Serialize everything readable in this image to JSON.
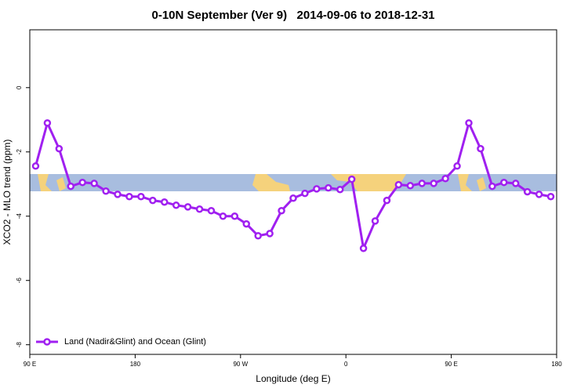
{
  "chart_data": {
    "type": "line",
    "title": "0-10N September (Ver 9)   2014-09-06 to 2018-12-31",
    "xlabel": "Longitude (deg E)",
    "ylabel": "XCO2 - MLO trend (ppm)",
    "x": [
      95,
      105,
      115,
      125,
      135,
      145,
      155,
      165,
      175,
      185,
      195,
      205,
      215,
      225,
      235,
      245,
      255,
      265,
      275,
      285,
      295,
      305,
      315,
      325,
      335,
      345,
      355,
      365,
      375,
      385,
      395,
      405,
      415,
      425,
      435,
      445,
      455,
      465,
      475,
      485,
      495,
      505,
      515,
      525,
      535
    ],
    "series": [
      {
        "name": "Land (Nadir&Glint) and Ocean (Glint)",
        "color": "#a020f0",
        "values": [
          -2.44,
          -1.1,
          -1.9,
          -3.07,
          -2.95,
          -2.98,
          -3.22,
          -3.32,
          -3.39,
          -3.39,
          -3.51,
          -3.56,
          -3.66,
          -3.71,
          -3.78,
          -3.83,
          -4.0,
          -4.0,
          -4.24,
          -4.61,
          -4.54,
          -3.83,
          -3.44,
          -3.29,
          -3.15,
          -3.12,
          -3.17,
          -2.85,
          -5.0,
          -4.15,
          -3.51,
          -3.02,
          -3.05,
          -2.98,
          -2.98,
          -2.83,
          -2.44,
          -1.1,
          -1.9,
          -3.07,
          -2.95,
          -2.98,
          -3.24,
          -3.32,
          -3.39
        ]
      }
    ],
    "xlim": [
      90,
      540
    ],
    "xticks": [
      {
        "value": 90,
        "label": "90 E"
      },
      180,
      {
        "value": 270,
        "label": "90 W"
      },
      {
        "value": 360,
        "label": "0"
      },
      {
        "value": 450,
        "label": "90 E"
      },
      {
        "value": 540,
        "label": "180"
      }
    ],
    "ylim": [
      -8.3,
      1.8
    ],
    "yticks": [
      -8,
      -6,
      -4,
      -2,
      0
    ],
    "legend": "bottom-left"
  }
}
